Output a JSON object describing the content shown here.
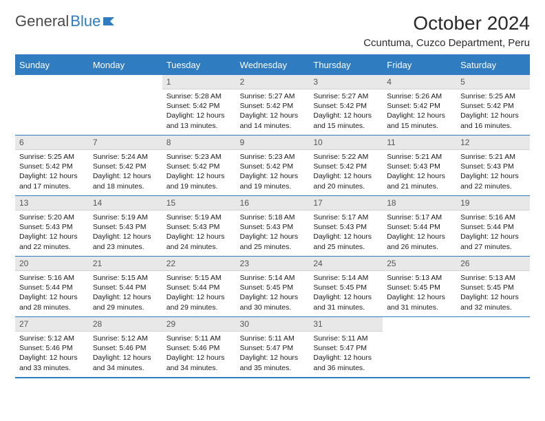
{
  "logo": {
    "text1": "General",
    "text2": "Blue"
  },
  "title": "October 2024",
  "location": "Ccuntuma, Cuzco Department, Peru",
  "colors": {
    "accent": "#2f7cc0",
    "headerBg": "#2f7cc0",
    "dayNumBg": "#e8e8e8"
  },
  "dayHeaders": [
    "Sunday",
    "Monday",
    "Tuesday",
    "Wednesday",
    "Thursday",
    "Friday",
    "Saturday"
  ],
  "weeks": [
    [
      null,
      null,
      {
        "n": "1",
        "sr": "5:28 AM",
        "ss": "5:42 PM",
        "dl": "12 hours and 13 minutes."
      },
      {
        "n": "2",
        "sr": "5:27 AM",
        "ss": "5:42 PM",
        "dl": "12 hours and 14 minutes."
      },
      {
        "n": "3",
        "sr": "5:27 AM",
        "ss": "5:42 PM",
        "dl": "12 hours and 15 minutes."
      },
      {
        "n": "4",
        "sr": "5:26 AM",
        "ss": "5:42 PM",
        "dl": "12 hours and 15 minutes."
      },
      {
        "n": "5",
        "sr": "5:25 AM",
        "ss": "5:42 PM",
        "dl": "12 hours and 16 minutes."
      }
    ],
    [
      {
        "n": "6",
        "sr": "5:25 AM",
        "ss": "5:42 PM",
        "dl": "12 hours and 17 minutes."
      },
      {
        "n": "7",
        "sr": "5:24 AM",
        "ss": "5:42 PM",
        "dl": "12 hours and 18 minutes."
      },
      {
        "n": "8",
        "sr": "5:23 AM",
        "ss": "5:42 PM",
        "dl": "12 hours and 19 minutes."
      },
      {
        "n": "9",
        "sr": "5:23 AM",
        "ss": "5:42 PM",
        "dl": "12 hours and 19 minutes."
      },
      {
        "n": "10",
        "sr": "5:22 AM",
        "ss": "5:42 PM",
        "dl": "12 hours and 20 minutes."
      },
      {
        "n": "11",
        "sr": "5:21 AM",
        "ss": "5:43 PM",
        "dl": "12 hours and 21 minutes."
      },
      {
        "n": "12",
        "sr": "5:21 AM",
        "ss": "5:43 PM",
        "dl": "12 hours and 22 minutes."
      }
    ],
    [
      {
        "n": "13",
        "sr": "5:20 AM",
        "ss": "5:43 PM",
        "dl": "12 hours and 22 minutes."
      },
      {
        "n": "14",
        "sr": "5:19 AM",
        "ss": "5:43 PM",
        "dl": "12 hours and 23 minutes."
      },
      {
        "n": "15",
        "sr": "5:19 AM",
        "ss": "5:43 PM",
        "dl": "12 hours and 24 minutes."
      },
      {
        "n": "16",
        "sr": "5:18 AM",
        "ss": "5:43 PM",
        "dl": "12 hours and 25 minutes."
      },
      {
        "n": "17",
        "sr": "5:17 AM",
        "ss": "5:43 PM",
        "dl": "12 hours and 25 minutes."
      },
      {
        "n": "18",
        "sr": "5:17 AM",
        "ss": "5:44 PM",
        "dl": "12 hours and 26 minutes."
      },
      {
        "n": "19",
        "sr": "5:16 AM",
        "ss": "5:44 PM",
        "dl": "12 hours and 27 minutes."
      }
    ],
    [
      {
        "n": "20",
        "sr": "5:16 AM",
        "ss": "5:44 PM",
        "dl": "12 hours and 28 minutes."
      },
      {
        "n": "21",
        "sr": "5:15 AM",
        "ss": "5:44 PM",
        "dl": "12 hours and 29 minutes."
      },
      {
        "n": "22",
        "sr": "5:15 AM",
        "ss": "5:44 PM",
        "dl": "12 hours and 29 minutes."
      },
      {
        "n": "23",
        "sr": "5:14 AM",
        "ss": "5:45 PM",
        "dl": "12 hours and 30 minutes."
      },
      {
        "n": "24",
        "sr": "5:14 AM",
        "ss": "5:45 PM",
        "dl": "12 hours and 31 minutes."
      },
      {
        "n": "25",
        "sr": "5:13 AM",
        "ss": "5:45 PM",
        "dl": "12 hours and 31 minutes."
      },
      {
        "n": "26",
        "sr": "5:13 AM",
        "ss": "5:45 PM",
        "dl": "12 hours and 32 minutes."
      }
    ],
    [
      {
        "n": "27",
        "sr": "5:12 AM",
        "ss": "5:46 PM",
        "dl": "12 hours and 33 minutes."
      },
      {
        "n": "28",
        "sr": "5:12 AM",
        "ss": "5:46 PM",
        "dl": "12 hours and 34 minutes."
      },
      {
        "n": "29",
        "sr": "5:11 AM",
        "ss": "5:46 PM",
        "dl": "12 hours and 34 minutes."
      },
      {
        "n": "30",
        "sr": "5:11 AM",
        "ss": "5:47 PM",
        "dl": "12 hours and 35 minutes."
      },
      {
        "n": "31",
        "sr": "5:11 AM",
        "ss": "5:47 PM",
        "dl": "12 hours and 36 minutes."
      },
      null,
      null
    ]
  ],
  "labels": {
    "sunrise": "Sunrise: ",
    "sunset": "Sunset: ",
    "daylight": "Daylight: "
  }
}
